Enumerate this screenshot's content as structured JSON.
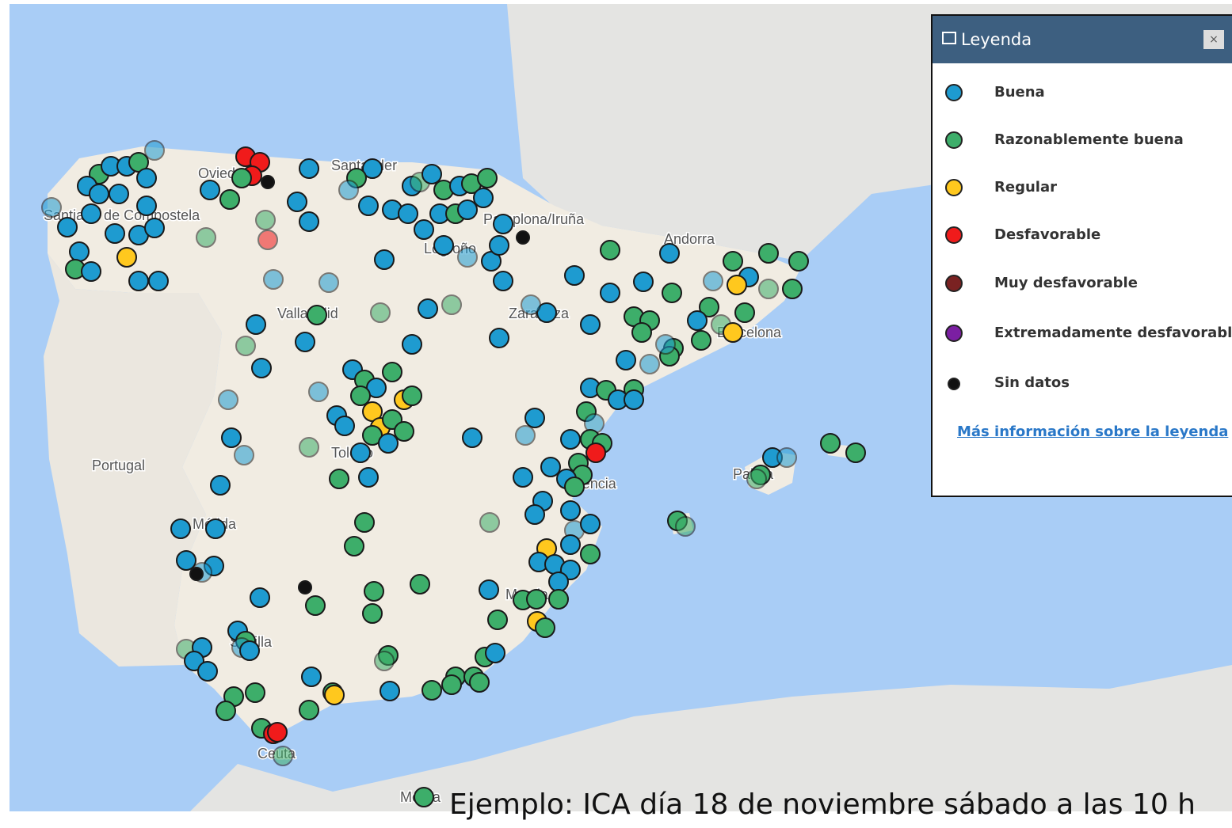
{
  "legend": {
    "title": "Leyenda",
    "close": "×",
    "items": [
      {
        "label": "Buena",
        "color": "#1e9bd0"
      },
      {
        "label": "Razonablemente buena",
        "color": "#3dae6a"
      },
      {
        "label": "Regular",
        "color": "#ffc81e"
      },
      {
        "label": "Desfavorable",
        "color": "#f01b1b"
      },
      {
        "label": "Muy desfavorable",
        "color": "#7a2222"
      },
      {
        "label": "Extremadamente desfavorable",
        "color": "#7b1fa2"
      },
      {
        "label": "Sin datos",
        "color": "#111111"
      }
    ],
    "link": "Más información sobre la leyenda"
  },
  "map_labels": [
    "Santiago de Compostela",
    "Oviedo",
    "Santander",
    "Pamplona/Iruña",
    "Logroño",
    "Andorra",
    "Valladolid",
    "Zaragoza",
    "Barcelona",
    "Portugal",
    "Toledo",
    "Valencia",
    "Palma",
    "Mérida",
    "Sevilla",
    "Murcia",
    "Ceuta",
    "Melilla"
  ],
  "caption": "Ejemplo: ICA día 18 de noviembre sábado a las 10 h"
}
